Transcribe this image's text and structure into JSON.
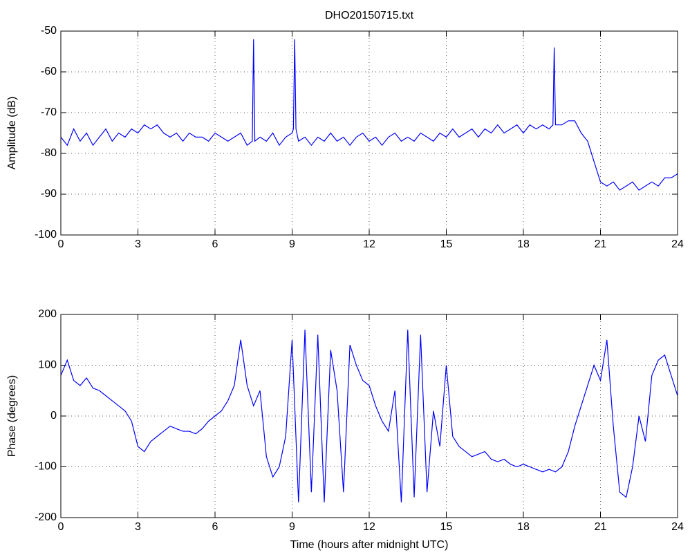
{
  "chart_data": [
    {
      "type": "line",
      "title": "DHO20150715.txt",
      "y_label": "Amplitude (dB)",
      "x": [
        0,
        0.25,
        0.5,
        0.75,
        1,
        1.25,
        1.5,
        1.75,
        2,
        2.25,
        2.5,
        2.75,
        3,
        3.25,
        3.5,
        3.75,
        4,
        4.25,
        4.5,
        4.75,
        5,
        5.25,
        5.5,
        5.75,
        6,
        6.25,
        6.5,
        6.75,
        7,
        7.25,
        7.45,
        7.5,
        7.55,
        7.75,
        8,
        8.25,
        8.5,
        8.75,
        9,
        9.05,
        9.1,
        9.15,
        9.25,
        9.5,
        9.75,
        10,
        10.25,
        10.5,
        10.75,
        11,
        11.25,
        11.5,
        11.75,
        12,
        12.25,
        12.5,
        12.75,
        13,
        13.25,
        13.5,
        13.75,
        14,
        14.25,
        14.5,
        14.75,
        15,
        15.25,
        15.5,
        15.75,
        16,
        16.25,
        16.5,
        16.75,
        17,
        17.25,
        17.5,
        17.75,
        18,
        18.25,
        18.5,
        18.75,
        19,
        19.15,
        19.2,
        19.25,
        19.5,
        19.75,
        20,
        20.25,
        20.5,
        20.75,
        21,
        21.25,
        21.5,
        21.75,
        22,
        22.25,
        22.5,
        22.75,
        23,
        23.25,
        23.5,
        23.75,
        24
      ],
      "series": [
        {
          "color": "#0000ff",
          "values": [
            -76,
            -78,
            -74,
            -77,
            -75,
            -78,
            -76,
            -74,
            -77,
            -75,
            -76,
            -74,
            -75,
            -73,
            -74,
            -73,
            -75,
            -76,
            -75,
            -77,
            -75,
            -76,
            -76,
            -77,
            -75,
            -76,
            -77,
            -76,
            -75,
            -78,
            -77,
            -52,
            -77,
            -76,
            -77,
            -75,
            -78,
            -76,
            -75,
            -74,
            -52,
            -74,
            -77,
            -76,
            -78,
            -76,
            -77,
            -75,
            -77,
            -76,
            -78,
            -76,
            -75,
            -77,
            -76,
            -78,
            -76,
            -75,
            -77,
            -76,
            -77,
            -75,
            -76,
            -77,
            -75,
            -76,
            -74,
            -76,
            -75,
            -74,
            -76,
            -74,
            -75,
            -73,
            -75,
            -74,
            -73,
            -75,
            -73,
            -74,
            -73,
            -74,
            -73,
            -54,
            -73,
            -73,
            -72,
            -72,
            -75,
            -77,
            -82,
            -87,
            -88,
            -87,
            -89,
            -88,
            -87,
            -89,
            -88,
            -87,
            -88,
            -86,
            -86,
            -85
          ]
        }
      ],
      "xlim": [
        0,
        24
      ],
      "xticks": [
        0,
        3,
        6,
        9,
        12,
        15,
        18,
        21,
        24
      ],
      "ylim": [
        -100,
        -50
      ],
      "yticks": [
        -100,
        -90,
        -80,
        -70,
        -60,
        -50
      ],
      "grid": true
    },
    {
      "type": "line",
      "x_label": "Time (hours after midnight UTC)",
      "y_label": "Phase (degrees)",
      "x": [
        0,
        0.25,
        0.5,
        0.75,
        1,
        1.25,
        1.5,
        1.75,
        2,
        2.25,
        2.5,
        2.75,
        3,
        3.25,
        3.5,
        3.75,
        4,
        4.25,
        4.5,
        4.75,
        5,
        5.25,
        5.5,
        5.75,
        6,
        6.25,
        6.5,
        6.75,
        7,
        7.25,
        7.5,
        7.75,
        8,
        8.25,
        8.5,
        8.75,
        9,
        9.25,
        9.5,
        9.75,
        10,
        10.25,
        10.5,
        10.75,
        11,
        11.25,
        11.5,
        11.75,
        12,
        12.25,
        12.5,
        12.75,
        13,
        13.25,
        13.5,
        13.75,
        14,
        14.25,
        14.5,
        14.75,
        15,
        15.25,
        15.5,
        15.75,
        16,
        16.25,
        16.5,
        16.75,
        17,
        17.25,
        17.5,
        17.75,
        18,
        18.25,
        18.5,
        18.75,
        19,
        19.25,
        19.5,
        19.75,
        20,
        20.25,
        20.5,
        20.75,
        21,
        21.25,
        21.5,
        21.75,
        22,
        22.25,
        22.5,
        22.75,
        23,
        23.25,
        23.5,
        23.75,
        24
      ],
      "series": [
        {
          "color": "#0000ff",
          "values": [
            80,
            110,
            70,
            60,
            75,
            55,
            50,
            40,
            30,
            20,
            10,
            -10,
            -60,
            -70,
            -50,
            -40,
            -30,
            -20,
            -25,
            -30,
            -30,
            -35,
            -25,
            -10,
            0,
            10,
            30,
            60,
            150,
            60,
            20,
            50,
            -80,
            -120,
            -100,
            -40,
            150,
            -170,
            170,
            -150,
            160,
            -170,
            130,
            50,
            -150,
            140,
            100,
            70,
            60,
            20,
            -10,
            -30,
            50,
            -170,
            170,
            -160,
            160,
            -150,
            10,
            -60,
            100,
            -40,
            -60,
            -70,
            -80,
            -75,
            -70,
            -85,
            -90,
            -85,
            -95,
            -100,
            -95,
            -100,
            -105,
            -110,
            -105,
            -110,
            -100,
            -70,
            -20,
            20,
            60,
            100,
            70,
            150,
            -20,
            -150,
            -160,
            -100,
            0,
            -50,
            80,
            110,
            120,
            80,
            40
          ]
        }
      ],
      "xlim": [
        0,
        24
      ],
      "xticks": [
        0,
        3,
        6,
        9,
        12,
        15,
        18,
        21,
        24
      ],
      "ylim": [
        -200,
        200
      ],
      "yticks": [
        -200,
        -100,
        0,
        100,
        200
      ],
      "grid": true
    }
  ]
}
